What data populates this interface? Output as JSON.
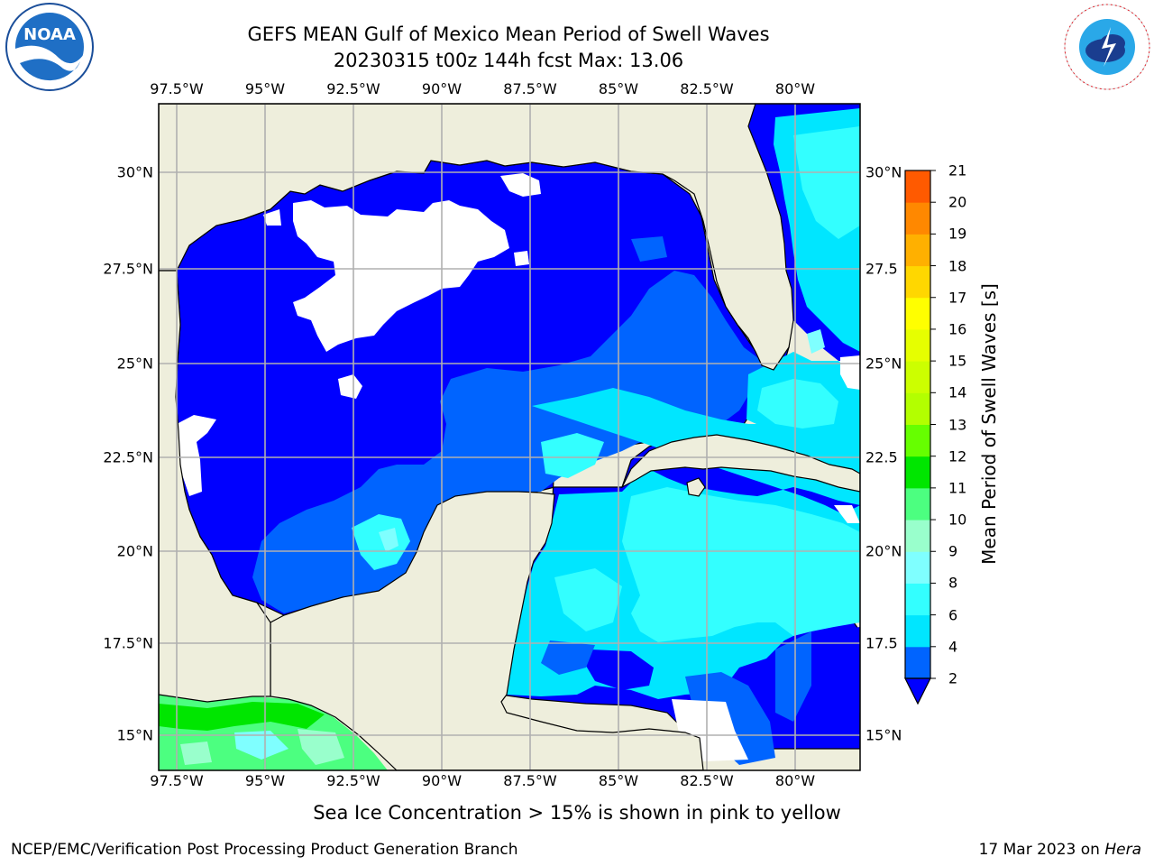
{
  "title": {
    "line1": "GEFS MEAN Gulf of Mexico Mean Period of Swell Waves",
    "line2": "20230315 t00z 144h fcst   Max: 13.06"
  },
  "logos": {
    "left": "noaa-logo",
    "right": "national-weather-service-logo"
  },
  "axes": {
    "lon_labels": [
      "97.5°W",
      "95°W",
      "92.5°W",
      "90°W",
      "87.5°W",
      "85°W",
      "82.5°W",
      "80°W"
    ],
    "lat_labels_left": [
      "30°N",
      "27.5°N",
      "25°N",
      "22.5°N",
      "20°N",
      "17.5°N",
      "15°N"
    ],
    "lat_labels_right": [
      "30°N",
      "27.5",
      "25°N",
      "22.5",
      "20°N",
      "17.5",
      "15°N"
    ]
  },
  "colorbar": {
    "label": "Mean Period of Swell Waves [s]",
    "ticks": [
      "2",
      "4",
      "6",
      "8",
      "9",
      "10",
      "11",
      "12",
      "13",
      "14",
      "15",
      "16",
      "17",
      "18",
      "19",
      "20",
      "21"
    ],
    "colors": [
      "#0064ff",
      "#00e6ff",
      "#33ffff",
      "#7fffff",
      "#99ffcc",
      "#4cff80",
      "#00e600",
      "#66ff00",
      "#b3ff00",
      "#ccff00",
      "#e6ff00",
      "#ffff00",
      "#ffd700",
      "#ffb000",
      "#ff8800",
      "#ff5a00",
      "#ff2a00",
      "#ff0000"
    ],
    "extend_color": "#0000ff"
  },
  "map": {
    "land_color": "#eeeedc",
    "colors": {
      "lt2": "#0000ff",
      "2to4": "#0064ff",
      "4to6": "#00e6ff",
      "6to8": "#33ffff",
      "8to9": "#7fffff",
      "9to10": "#99ffcc",
      "10to11": "#4cff80",
      "11to12": "#00e600"
    }
  },
  "footer": {
    "note": "Sea Ice Concentration > 15% is shown in pink to yellow",
    "credit": "NCEP/EMC/Verification Post Processing Product Generation Branch",
    "date": "17 Mar 2023 on ",
    "host": "Hera"
  }
}
